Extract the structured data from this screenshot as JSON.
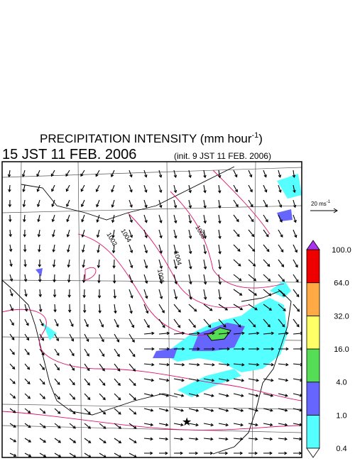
{
  "header": {
    "title": "PRECIPITATION INTENSITY (mm hour",
    "title_superscript": "-1",
    "title_end": ")",
    "valid_time": "15 JST 11 FEB. 2006",
    "init_time": "(init. 9 JST 11 FEB. 2006)"
  },
  "reference_vector": {
    "label": "20 ms",
    "superscript": "-1"
  },
  "contour_labels": [
    "1002",
    "1004",
    "1006",
    "1008",
    "1004"
  ],
  "colorbar": {
    "levels": [
      0.4,
      {
        "value": 1,
        "label": "1.0"
      },
      {
        "value": 4,
        "label": "4.0"
      },
      {
        "value": 16,
        "label": "16.0"
      },
      {
        "value": 32,
        "label": "32.0"
      },
      {
        "value": 64,
        "label": "64.0"
      },
      {
        "value": 100,
        "label": "100.0"
      }
    ],
    "colors": [
      "#55ffff",
      "#6666ff",
      "#55dd55",
      "#ffff66",
      "#ffaa44",
      "#ee0000"
    ],
    "under_color": "#ffffff",
    "over_color": "#aa33ee"
  }
}
